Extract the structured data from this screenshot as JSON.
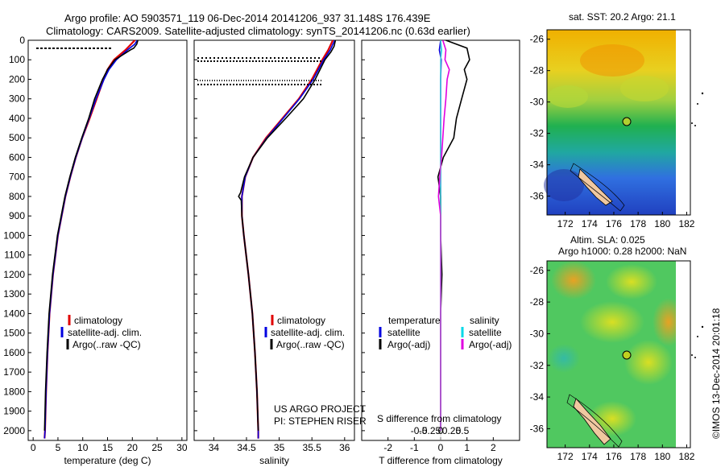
{
  "header": {
    "line1": "Argo profile: AO 5903571_119 06-Dec-2014 20141206_937 31.148S 176.439E",
    "line2": "Climatology: CARS2009. Satellite-adjusted climatology: synTS_20141206.nc (0.63d earlier)"
  },
  "colors": {
    "climatology": "#e00000",
    "satellite": "#0000e0",
    "argo": "#000000",
    "sat_salinity": "#00d8e8",
    "argo_salinity_adj": "#e000e0"
  },
  "depth_axis": {
    "ticks": [
      "0",
      "100",
      "200",
      "300",
      "400",
      "500",
      "600",
      "700",
      "800",
      "900",
      "1000",
      "1100",
      "1200",
      "1300",
      "1400",
      "1500",
      "1600",
      "1700",
      "1800",
      "1900",
      "2000"
    ]
  },
  "legend_profiles": {
    "items": [
      "climatology",
      "satellite-adj. clim.",
      "Argo(..raw -QC)"
    ]
  },
  "legend_diff": {
    "temp_title": "temperature",
    "sal_title": "salinity",
    "temp_items": [
      "satellite",
      "Argo(-adj)"
    ],
    "sal_items": [
      "satellite",
      "Argo(-adj)"
    ]
  },
  "credits": {
    "project": "US ARGO PROJECT",
    "pi": "PI: STEPHEN RISER"
  },
  "diff_labels": {
    "s_title": "S difference from climatology",
    "t_title": "T difference from climatology",
    "s_ticks": [
      "-0.5",
      "-0.25",
      "0",
      "0.25",
      "0.5"
    ],
    "t_ticks": [
      "-2",
      "-1",
      "0",
      "1",
      "2"
    ]
  },
  "maps": {
    "sst_title": "sat. SST: 20.2  Argo: 21.1",
    "sla_title1": "Altim. SLA: 0.025",
    "sla_title2": "Argo h1000: 0.28 h2000: NaN",
    "lat_ticks": [
      "-26",
      "-28",
      "-30",
      "-32",
      "-34",
      "-36"
    ],
    "lon_ticks": [
      "172",
      "174",
      "176",
      "178",
      "180",
      "182"
    ],
    "float_position": {
      "lon": 176.439,
      "lat": -31.148
    }
  },
  "watermark": "©IMOS 13-Dec-2014 20:01:18",
  "chart_data": [
    {
      "type": "line",
      "xlabel": "temperature (deg C)",
      "ylim": [
        2050,
        0
      ],
      "xlim": [
        -1,
        31
      ],
      "xticks": [
        "0",
        "5",
        "10",
        "15",
        "20",
        "25",
        "30"
      ],
      "series": [
        {
          "name": "climatology",
          "depth": [
            0,
            50,
            100,
            150,
            200,
            300,
            400,
            500,
            600,
            700,
            800,
            1000,
            1200,
            1400,
            1600,
            1800,
            2000,
            2040
          ],
          "values": [
            20.5,
            18.6,
            16.3,
            15.0,
            14.2,
            12.8,
            11.4,
            9.9,
            8.6,
            7.5,
            6.5,
            5.0,
            4.0,
            3.3,
            2.9,
            2.6,
            2.4,
            2.3
          ]
        },
        {
          "name": "satellite-adj. clim.",
          "depth": [
            0,
            20,
            50,
            100,
            150,
            200,
            300,
            400,
            500,
            600,
            700,
            800,
            1000,
            1200,
            1400,
            1600,
            1800,
            2000,
            2040
          ],
          "values": [
            21.0,
            20.5,
            19.0,
            16.8,
            15.3,
            14.3,
            12.7,
            11.3,
            9.9,
            8.6,
            7.5,
            6.5,
            5.0,
            4.0,
            3.3,
            2.9,
            2.6,
            2.4,
            2.3
          ]
        },
        {
          "name": "Argo(..raw -QC)",
          "depth": [
            0,
            20,
            40,
            50,
            100,
            150,
            200,
            300,
            400,
            500,
            600,
            700,
            800,
            1000,
            1200,
            1400,
            1600,
            1800,
            2000
          ],
          "values": [
            21.1,
            20.9,
            20.3,
            19.6,
            16.5,
            15.0,
            14.0,
            12.4,
            11.2,
            9.8,
            8.5,
            7.4,
            6.4,
            4.9,
            3.9,
            3.2,
            2.8,
            2.5,
            2.3
          ]
        }
      ]
    },
    {
      "type": "line",
      "xlabel": "salinity",
      "ylim": [
        2050,
        0
      ],
      "xlim": [
        33.7,
        36.15
      ],
      "xticks": [
        "34",
        "34.5",
        "35",
        "35.5",
        "36"
      ],
      "series": [
        {
          "name": "climatology",
          "depth": [
            0,
            50,
            100,
            200,
            300,
            400,
            500,
            600,
            700,
            800,
            900,
            1000,
            1200,
            1400,
            1600,
            1800,
            2000,
            2040
          ],
          "values": [
            35.82,
            35.75,
            35.66,
            35.5,
            35.3,
            35.05,
            34.8,
            34.6,
            34.48,
            34.43,
            34.43,
            34.46,
            34.53,
            34.59,
            34.63,
            34.66,
            34.68,
            34.68
          ]
        },
        {
          "name": "satellite-adj. clim.",
          "depth": [
            0,
            50,
            100,
            200,
            300,
            400,
            500,
            600,
            700,
            800,
            900,
            1000,
            1200,
            1400,
            1600,
            1800,
            2000,
            2040
          ],
          "values": [
            35.85,
            35.78,
            35.68,
            35.52,
            35.31,
            35.06,
            34.81,
            34.6,
            34.48,
            34.43,
            34.43,
            34.46,
            34.53,
            34.59,
            34.63,
            34.66,
            34.68,
            34.68
          ]
        },
        {
          "name": "Argo(..raw -QC)",
          "depth": [
            0,
            30,
            60,
            100,
            200,
            300,
            400,
            500,
            600,
            700,
            780,
            800,
            820,
            900,
            1000,
            1200,
            1400,
            1600,
            1800,
            2000
          ],
          "values": [
            35.86,
            35.84,
            35.79,
            35.7,
            35.55,
            35.37,
            35.1,
            34.82,
            34.6,
            34.47,
            34.41,
            34.38,
            34.42,
            34.43,
            34.46,
            34.53,
            34.59,
            34.63,
            34.66,
            34.68
          ]
        }
      ]
    },
    {
      "type": "line",
      "title": "S difference from climatology / T difference from climatology",
      "ylim": [
        2050,
        0
      ],
      "xlim": [
        -3,
        3
      ],
      "series": [
        {
          "name": "T satellite",
          "depth": [
            0,
            50,
            100,
            200,
            400,
            800,
            1200,
            1600,
            2000
          ],
          "values": [
            0.0,
            -0.05,
            0.02,
            0.0,
            0.0,
            0.0,
            0.0,
            0.0,
            0.0
          ]
        },
        {
          "name": "T Argo(-adj)",
          "depth": [
            0,
            40,
            100,
            150,
            200,
            300,
            400,
            500,
            600,
            700,
            800,
            900,
            1000,
            1200,
            1400,
            1600,
            2000
          ],
          "values": [
            0.2,
            1.0,
            1.1,
            0.9,
            1.0,
            0.8,
            0.6,
            0.5,
            0.1,
            -0.1,
            0.0,
            0.0,
            0.0,
            0.05,
            0.0,
            0.0,
            0.0
          ]
        },
        {
          "name": "S satellite",
          "depth": [
            0,
            50,
            100,
            200,
            400,
            800,
            1200,
            1600,
            2000
          ],
          "values": [
            0.0,
            0.02,
            0.0,
            0.0,
            0.0,
            0.0,
            0.0,
            0.0,
            0.0
          ]
        },
        {
          "name": "S Argo(-adj)",
          "depth": [
            0,
            50,
            100,
            150,
            200,
            300,
            400,
            500,
            600,
            700,
            800,
            900,
            1000,
            1200,
            1600,
            2000
          ],
          "values": [
            0.05,
            0.12,
            0.1,
            0.2,
            0.15,
            0.12,
            0.08,
            0.05,
            0.02,
            -0.02,
            -0.05,
            0.0,
            0.0,
            0.0,
            0.0,
            0.0
          ]
        }
      ]
    }
  ]
}
